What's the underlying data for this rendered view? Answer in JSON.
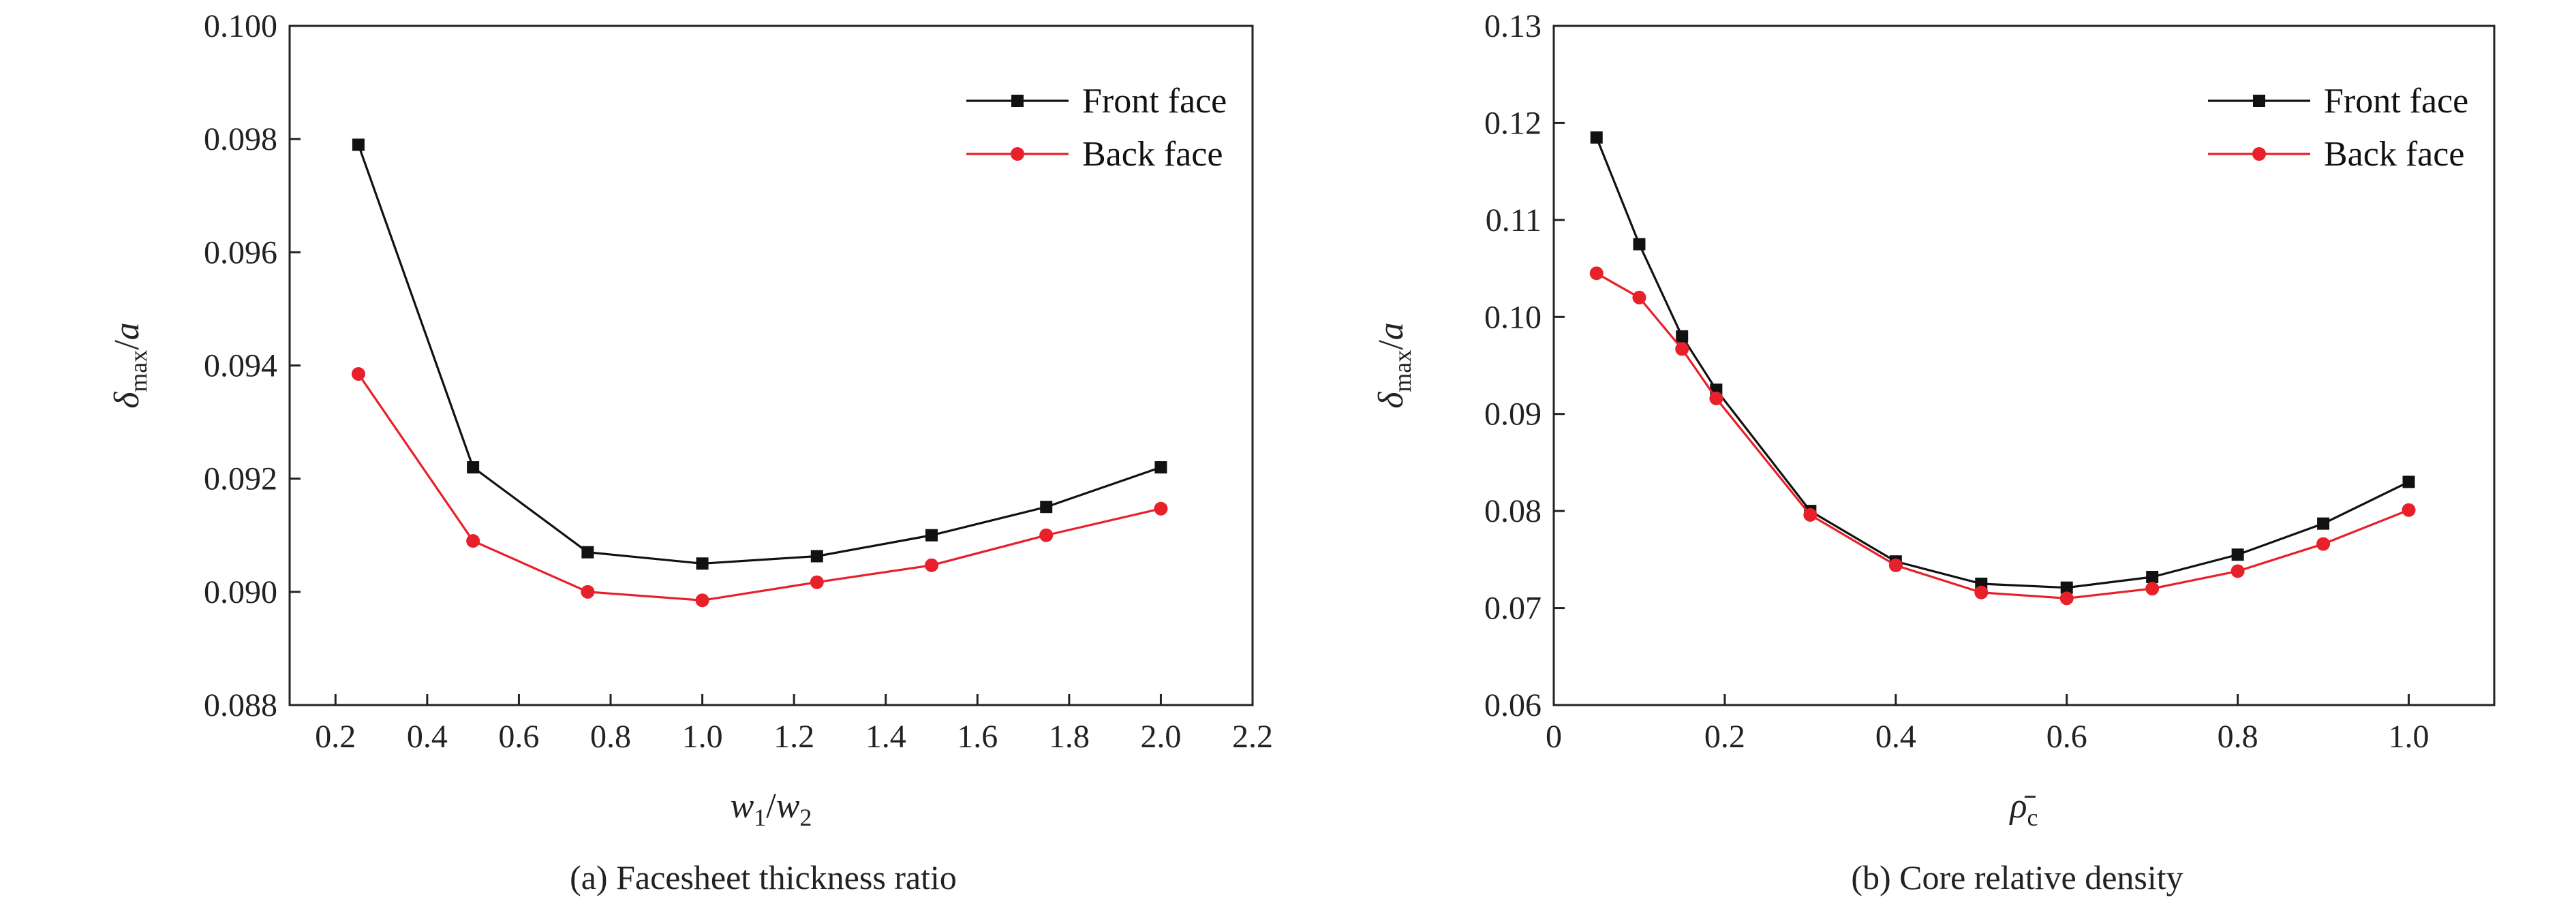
{
  "chart_data": [
    {
      "type": "line",
      "caption": "(a) Facesheet thickness ratio",
      "xlabel": {
        "var": "w",
        "sub1": "1",
        "slash": "/",
        "var2": "w",
        "sub2": "2"
      },
      "ylabel": {
        "greek": "δ",
        "sub": "max",
        "slash": "/",
        "var": "a"
      },
      "xlim": [
        0.1,
        2.2
      ],
      "ylim": [
        0.088,
        0.1
      ],
      "xticks": [
        "0.2",
        "0.4",
        "0.6",
        "0.8",
        "1.0",
        "1.2",
        "1.4",
        "1.6",
        "1.8",
        "2.0",
        "2.2"
      ],
      "yticks": [
        "0.088",
        "0.090",
        "0.092",
        "0.094",
        "0.096",
        "0.098",
        "0.100"
      ],
      "legend_position": "top-right",
      "series": [
        {
          "name": "Front face",
          "color": "#111111",
          "marker": "square",
          "x": [
            0.25,
            0.5,
            0.75,
            1.0,
            1.25,
            1.5,
            1.75,
            2.0
          ],
          "y": [
            0.0979,
            0.0922,
            0.0907,
            0.0905,
            0.09063,
            0.091,
            0.0915,
            0.0922
          ]
        },
        {
          "name": "Back face",
          "color": "#e8202a",
          "marker": "circle",
          "x": [
            0.25,
            0.5,
            0.75,
            1.0,
            1.25,
            1.5,
            1.75,
            2.0
          ],
          "y": [
            0.09385,
            0.0909,
            0.09,
            0.08985,
            0.09017,
            0.09047,
            0.091,
            0.09147
          ]
        }
      ]
    },
    {
      "type": "line",
      "caption": "(b) Core relative density",
      "xlabel": {
        "var": "ρ̄",
        "sub1": "c"
      },
      "ylabel": {
        "greek": "δ",
        "sub": "max",
        "slash": "/",
        "var": "a"
      },
      "xlim": [
        0,
        1.1
      ],
      "ylim": [
        0.06,
        0.13
      ],
      "xticks": [
        "0",
        "0.2",
        "0.4",
        "0.6",
        "0.8",
        "1.0"
      ],
      "yticks": [
        "0.06",
        "0.07",
        "0.08",
        "0.09",
        "0.10",
        "0.11",
        "0.12",
        "0.13"
      ],
      "legend_position": "top-right",
      "series": [
        {
          "name": "Front face",
          "color": "#111111",
          "marker": "square",
          "x": [
            0.05,
            0.1,
            0.15,
            0.19,
            0.3,
            0.4,
            0.5,
            0.6,
            0.7,
            0.8,
            0.9,
            1.0
          ],
          "y": [
            0.1185,
            0.1075,
            0.098,
            0.0925,
            0.08,
            0.0748,
            0.0725,
            0.0721,
            0.0732,
            0.0755,
            0.0787,
            0.083
          ]
        },
        {
          "name": "Back face",
          "color": "#e8202a",
          "marker": "circle",
          "x": [
            0.05,
            0.1,
            0.15,
            0.19,
            0.3,
            0.4,
            0.5,
            0.6,
            0.7,
            0.8,
            0.9,
            1.0
          ],
          "y": [
            0.1045,
            0.102,
            0.0967,
            0.0916,
            0.0796,
            0.0744,
            0.0716,
            0.071,
            0.072,
            0.0738,
            0.0766,
            0.0801
          ]
        }
      ]
    }
  ]
}
